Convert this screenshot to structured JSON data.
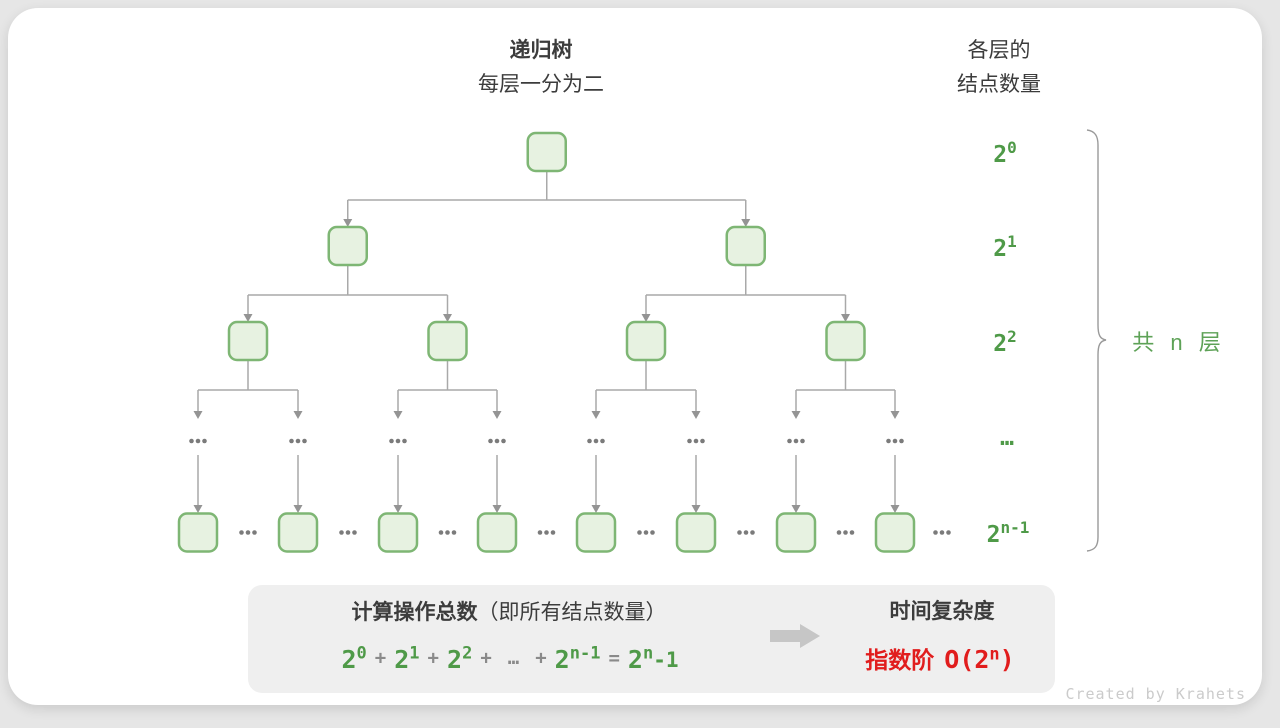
{
  "header": {
    "title": "递归树",
    "subtitle": "每层一分为二",
    "right_line1": "各层的",
    "right_line2": "结点数量"
  },
  "levels": [
    {
      "base": "2",
      "sup": "0"
    },
    {
      "base": "2",
      "sup": "1"
    },
    {
      "base": "2",
      "sup": "2"
    },
    {
      "text": "…"
    },
    {
      "base": "2",
      "sup": "n-1"
    }
  ],
  "brace_label": "共 n 层",
  "summary": {
    "title_bold": "计算操作总数",
    "title_paren": "（即所有结点数量）",
    "formula": [
      {
        "t": "pow",
        "base": "2",
        "sup": "0"
      },
      {
        "t": "op",
        "v": "+"
      },
      {
        "t": "pow",
        "base": "2",
        "sup": "1"
      },
      {
        "t": "op",
        "v": "+"
      },
      {
        "t": "pow",
        "base": "2",
        "sup": "2"
      },
      {
        "t": "op",
        "v": "+"
      },
      {
        "t": "op",
        "v": "…"
      },
      {
        "t": "op",
        "v": "+"
      },
      {
        "t": "pow",
        "base": "2",
        "sup": "n-1"
      },
      {
        "t": "op",
        "v": "="
      },
      {
        "t": "pow",
        "base": "2",
        "sup": "n",
        "tail": "-1"
      }
    ]
  },
  "result": {
    "label": "时间复杂度",
    "prefix": "指数阶",
    "base": "O(2",
    "sup": "n",
    "close": ")"
  },
  "watermark": "Created by Krahets",
  "colors": {
    "node_fill": "#e7f2e1",
    "node_border": "#7eb674",
    "line": "#a9a9a9",
    "arrow_head": "#949494",
    "dots": "#7b7b7b",
    "green_text": "#4f9a48",
    "red_text": "#e11d1d",
    "dark_text": "#3c3c3c",
    "op_gray": "#8a8a8a",
    "box_bg": "#efefef",
    "thick_arrow": "#c6c6c6",
    "brace": "#9a9a9a",
    "watermark": "#cbcbcb"
  }
}
